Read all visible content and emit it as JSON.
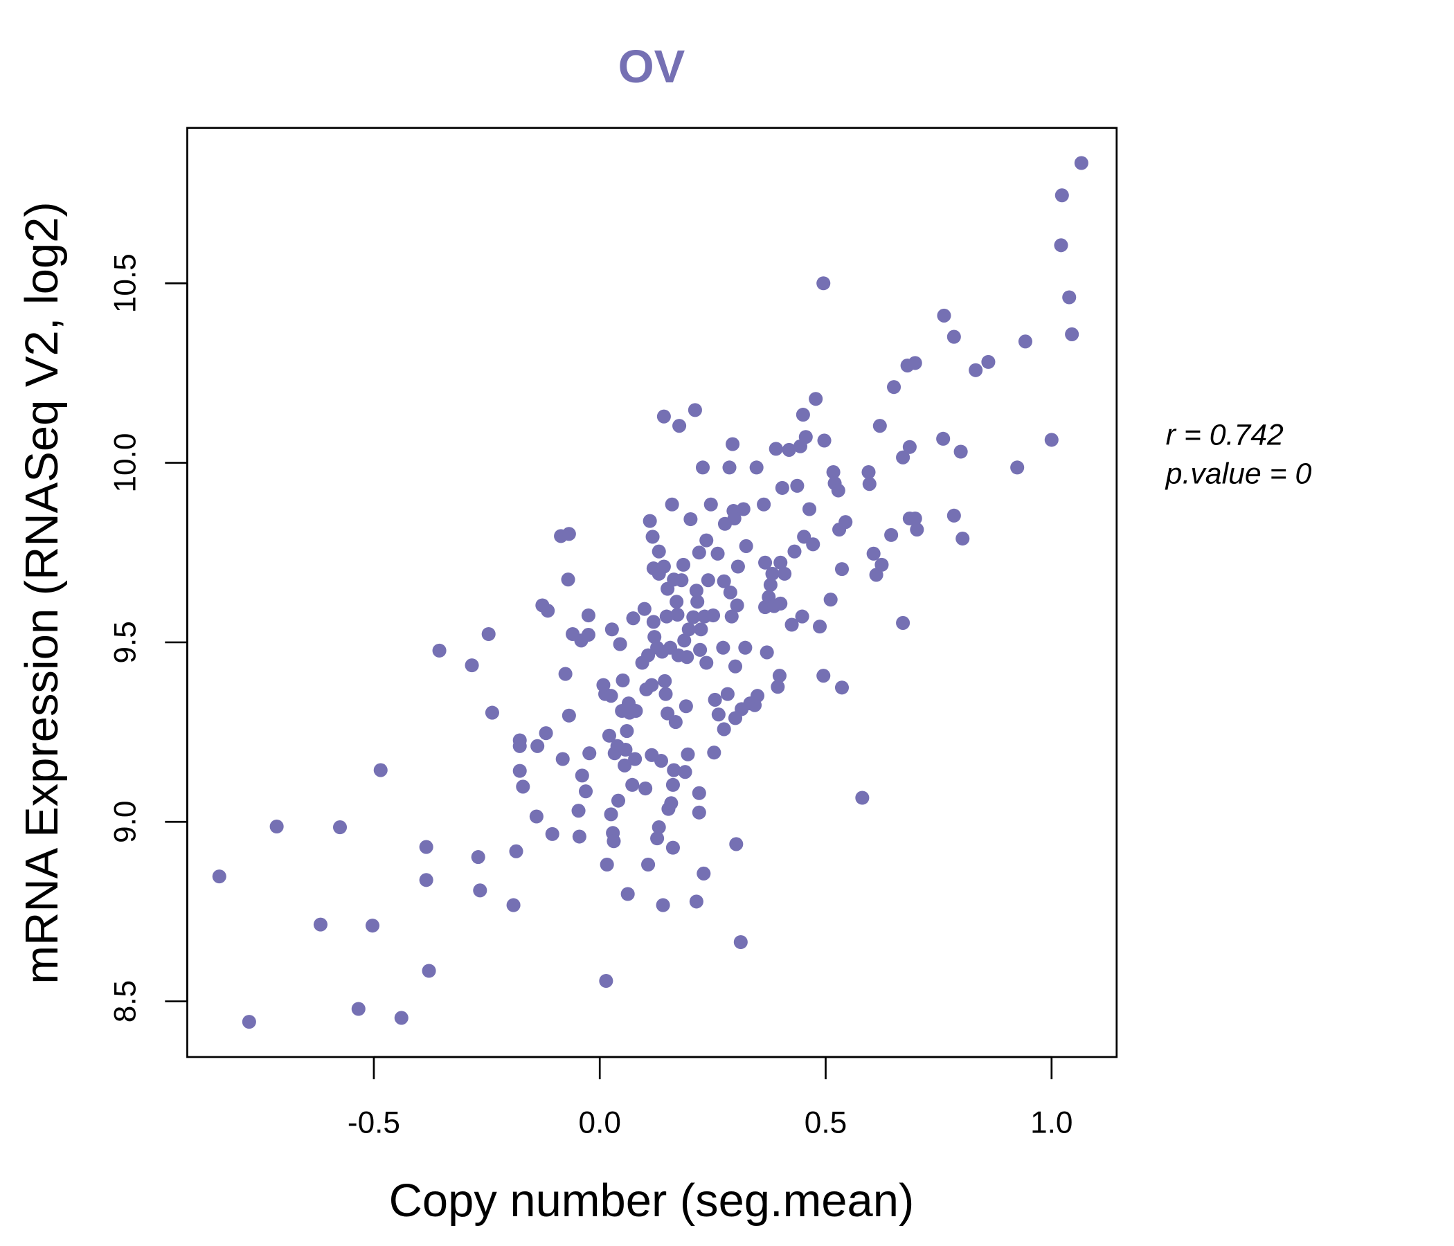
{
  "chart_data": {
    "type": "scatter",
    "title": "OV",
    "xlabel": "Copy number (seg.mean)",
    "ylabel": "mRNA Expression (RNASeq V2, log2)",
    "xlim": [
      -0.913,
      1.144
    ],
    "ylim": [
      8.345,
      10.933
    ],
    "xticks": [
      -0.5,
      0.0,
      0.5,
      1.0
    ],
    "xtick_labels": [
      "-0.5",
      "0.0",
      "0.5",
      "1.0"
    ],
    "yticks": [
      8.5,
      9.0,
      9.5,
      10.0,
      10.5
    ],
    "ytick_labels": [
      "8.5",
      "9.0",
      "9.5",
      "10.0",
      "10.5"
    ],
    "grid": false,
    "point_color": "#7570b3",
    "annotation": {
      "r_label": "r = 0.742",
      "p_label": "p.value = 0"
    },
    "points": [
      [
        -0.842,
        8.848
      ],
      [
        -0.776,
        8.443
      ],
      [
        -0.715,
        8.987
      ],
      [
        -0.618,
        8.714
      ],
      [
        -0.575,
        8.985
      ],
      [
        -0.534,
        8.479
      ],
      [
        -0.503,
        8.711
      ],
      [
        -0.485,
        9.144
      ],
      [
        -0.439,
        8.454
      ],
      [
        -0.384,
        8.93
      ],
      [
        -0.384,
        8.838
      ],
      [
        -0.378,
        8.585
      ],
      [
        -0.355,
        9.477
      ],
      [
        -0.283,
        9.436
      ],
      [
        -0.269,
        8.902
      ],
      [
        -0.265,
        8.809
      ],
      [
        -0.246,
        9.523
      ],
      [
        -0.238,
        9.304
      ],
      [
        -0.191,
        8.768
      ],
      [
        -0.185,
        8.918
      ],
      [
        -0.177,
        9.227
      ],
      [
        -0.177,
        9.211
      ],
      [
        -0.177,
        9.142
      ],
      [
        -0.17,
        9.098
      ],
      [
        -0.14,
        9.015
      ],
      [
        -0.138,
        9.211
      ],
      [
        -0.127,
        9.603
      ],
      [
        -0.119,
        9.247
      ],
      [
        -0.115,
        9.588
      ],
      [
        -0.105,
        8.966
      ],
      [
        -0.086,
        9.796
      ],
      [
        -0.082,
        9.175
      ],
      [
        -0.076,
        9.412
      ],
      [
        -0.07,
        9.675
      ],
      [
        -0.068,
        9.802
      ],
      [
        -0.068,
        9.296
      ],
      [
        -0.06,
        9.523
      ],
      [
        -0.047,
        9.031
      ],
      [
        -0.045,
        8.959
      ],
      [
        -0.041,
        9.505
      ],
      [
        -0.039,
        9.129
      ],
      [
        -0.031,
        9.085
      ],
      [
        -0.025,
        9.521
      ],
      [
        -0.025,
        9.575
      ],
      [
        -0.023,
        9.191
      ],
      [
        0.008,
        9.381
      ],
      [
        0.012,
        9.356
      ],
      [
        0.014,
        8.557
      ],
      [
        0.016,
        8.881
      ],
      [
        0.021,
        9.24
      ],
      [
        0.025,
        9.021
      ],
      [
        0.025,
        9.351
      ],
      [
        0.027,
        9.536
      ],
      [
        0.029,
        8.969
      ],
      [
        0.031,
        8.946
      ],
      [
        0.033,
        9.191
      ],
      [
        0.039,
        9.211
      ],
      [
        0.041,
        9.059
      ],
      [
        0.045,
        9.495
      ],
      [
        0.049,
        9.309
      ],
      [
        0.051,
        9.394
      ],
      [
        0.055,
        9.157
      ],
      [
        0.057,
        9.201
      ],
      [
        0.06,
        9.253
      ],
      [
        0.062,
        8.799
      ],
      [
        0.064,
        9.33
      ],
      [
        0.066,
        9.304
      ],
      [
        0.072,
        9.103
      ],
      [
        0.074,
        9.567
      ],
      [
        0.078,
        9.175
      ],
      [
        0.08,
        9.309
      ],
      [
        0.094,
        9.443
      ],
      [
        0.099,
        9.593
      ],
      [
        0.101,
        9.093
      ],
      [
        0.103,
        9.369
      ],
      [
        0.107,
        8.881
      ],
      [
        0.111,
        9.838
      ],
      [
        0.107,
        9.464
      ],
      [
        0.115,
        9.381
      ],
      [
        0.115,
        9.186
      ],
      [
        0.117,
        9.794
      ],
      [
        0.119,
        9.557
      ],
      [
        0.121,
        9.515
      ],
      [
        0.119,
        9.706
      ],
      [
        0.127,
        9.485
      ],
      [
        0.127,
        8.954
      ],
      [
        0.131,
        8.985
      ],
      [
        0.131,
        9.753
      ],
      [
        0.131,
        9.691
      ],
      [
        0.136,
        9.17
      ],
      [
        0.138,
        9.474
      ],
      [
        0.14,
        8.768
      ],
      [
        0.142,
        10.129
      ],
      [
        0.142,
        9.711
      ],
      [
        0.144,
        9.392
      ],
      [
        0.146,
        9.356
      ],
      [
        0.148,
        9.572
      ],
      [
        0.15,
        9.649
      ],
      [
        0.15,
        9.302
      ],
      [
        0.152,
        9.036
      ],
      [
        0.156,
        9.485
      ],
      [
        0.158,
        9.052
      ],
      [
        0.16,
        9.884
      ],
      [
        0.162,
        9.103
      ],
      [
        0.162,
        8.928
      ],
      [
        0.164,
        9.144
      ],
      [
        0.164,
        9.675
      ],
      [
        0.168,
        9.278
      ],
      [
        0.17,
        9.613
      ],
      [
        0.172,
        9.577
      ],
      [
        0.174,
        9.464
      ],
      [
        0.176,
        10.103
      ],
      [
        0.181,
        9.673
      ],
      [
        0.185,
        9.716
      ],
      [
        0.187,
        9.505
      ],
      [
        0.189,
        9.139
      ],
      [
        0.191,
        9.322
      ],
      [
        0.193,
        9.459
      ],
      [
        0.195,
        9.188
      ],
      [
        0.197,
        9.536
      ],
      [
        0.201,
        9.843
      ],
      [
        0.207,
        9.57
      ],
      [
        0.211,
        10.147
      ],
      [
        0.214,
        9.644
      ],
      [
        0.214,
        8.778
      ],
      [
        0.216,
        9.613
      ],
      [
        0.22,
        9.08
      ],
      [
        0.22,
        9.75
      ],
      [
        0.22,
        9.026
      ],
      [
        0.222,
        9.479
      ],
      [
        0.224,
        9.536
      ],
      [
        0.228,
        9.987
      ],
      [
        0.23,
        8.856
      ],
      [
        0.232,
        9.572
      ],
      [
        0.236,
        9.784
      ],
      [
        0.236,
        9.443
      ],
      [
        0.24,
        9.673
      ],
      [
        0.246,
        9.884
      ],
      [
        0.251,
        9.575
      ],
      [
        0.253,
        9.193
      ],
      [
        0.255,
        9.34
      ],
      [
        0.261,
        9.747
      ],
      [
        0.263,
        9.299
      ],
      [
        0.273,
        9.485
      ],
      [
        0.275,
        9.67
      ],
      [
        0.275,
        9.258
      ],
      [
        0.277,
        9.83
      ],
      [
        0.283,
        9.356
      ],
      [
        0.287,
        9.987
      ],
      [
        0.289,
        9.639
      ],
      [
        0.292,
        9.572
      ],
      [
        0.294,
        10.052
      ],
      [
        0.296,
        9.866
      ],
      [
        0.298,
        9.845
      ],
      [
        0.3,
        9.289
      ],
      [
        0.3,
        9.433
      ],
      [
        0.302,
        8.938
      ],
      [
        0.304,
        9.603
      ],
      [
        0.306,
        9.711
      ],
      [
        0.312,
        8.665
      ],
      [
        0.314,
        9.314
      ],
      [
        0.318,
        9.871
      ],
      [
        0.322,
        9.485
      ],
      [
        0.324,
        9.768
      ],
      [
        0.333,
        9.33
      ],
      [
        0.343,
        9.325
      ],
      [
        0.347,
        9.987
      ],
      [
        0.349,
        9.351
      ],
      [
        0.363,
        9.884
      ],
      [
        0.366,
        9.598
      ],
      [
        0.366,
        9.722
      ],
      [
        0.37,
        9.472
      ],
      [
        0.374,
        9.626
      ],
      [
        0.378,
        9.66
      ],
      [
        0.382,
        9.691
      ],
      [
        0.386,
        9.601
      ],
      [
        0.39,
        10.039
      ],
      [
        0.394,
        9.376
      ],
      [
        0.398,
        9.407
      ],
      [
        0.4,
        9.608
      ],
      [
        0.4,
        9.722
      ],
      [
        0.404,
        9.93
      ],
      [
        0.409,
        9.691
      ],
      [
        0.419,
        10.036
      ],
      [
        0.425,
        9.549
      ],
      [
        0.431,
        9.753
      ],
      [
        0.437,
        9.936
      ],
      [
        0.444,
        10.046
      ],
      [
        0.448,
        9.572
      ],
      [
        0.45,
        10.134
      ],
      [
        0.452,
        9.794
      ],
      [
        0.456,
        10.072
      ],
      [
        0.464,
        9.871
      ],
      [
        0.472,
        9.773
      ],
      [
        0.478,
        10.178
      ],
      [
        0.487,
        9.544
      ],
      [
        0.495,
        9.407
      ],
      [
        0.495,
        10.5
      ],
      [
        0.497,
        10.062
      ],
      [
        0.511,
        9.619
      ],
      [
        0.517,
        9.974
      ],
      [
        0.52,
        9.943
      ],
      [
        0.528,
        9.923
      ],
      [
        0.53,
        9.814
      ],
      [
        0.536,
        9.704
      ],
      [
        0.536,
        9.374
      ],
      [
        0.544,
        9.835
      ],
      [
        0.581,
        9.067
      ],
      [
        0.595,
        9.974
      ],
      [
        0.597,
        9.941
      ],
      [
        0.606,
        9.747
      ],
      [
        0.612,
        9.688
      ],
      [
        0.62,
        10.103
      ],
      [
        0.624,
        9.716
      ],
      [
        0.645,
        9.799
      ],
      [
        0.651,
        10.211
      ],
      [
        0.671,
        10.015
      ],
      [
        0.671,
        9.554
      ],
      [
        0.681,
        10.271
      ],
      [
        0.686,
        10.044
      ],
      [
        0.686,
        9.845
      ],
      [
        0.698,
        10.278
      ],
      [
        0.698,
        9.845
      ],
      [
        0.702,
        9.814
      ],
      [
        0.76,
        10.067
      ],
      [
        0.762,
        10.41
      ],
      [
        0.784,
        9.853
      ],
      [
        0.784,
        10.351
      ],
      [
        0.799,
        10.031
      ],
      [
        0.803,
        9.789
      ],
      [
        0.832,
        10.258
      ],
      [
        0.86,
        10.281
      ],
      [
        0.924,
        9.987
      ],
      [
        0.942,
        10.338
      ],
      [
        1.0,
        10.064
      ],
      [
        1.021,
        10.606
      ],
      [
        1.023,
        10.745
      ],
      [
        1.039,
        10.461
      ],
      [
        1.045,
        10.358
      ],
      [
        1.066,
        10.835
      ]
    ]
  }
}
